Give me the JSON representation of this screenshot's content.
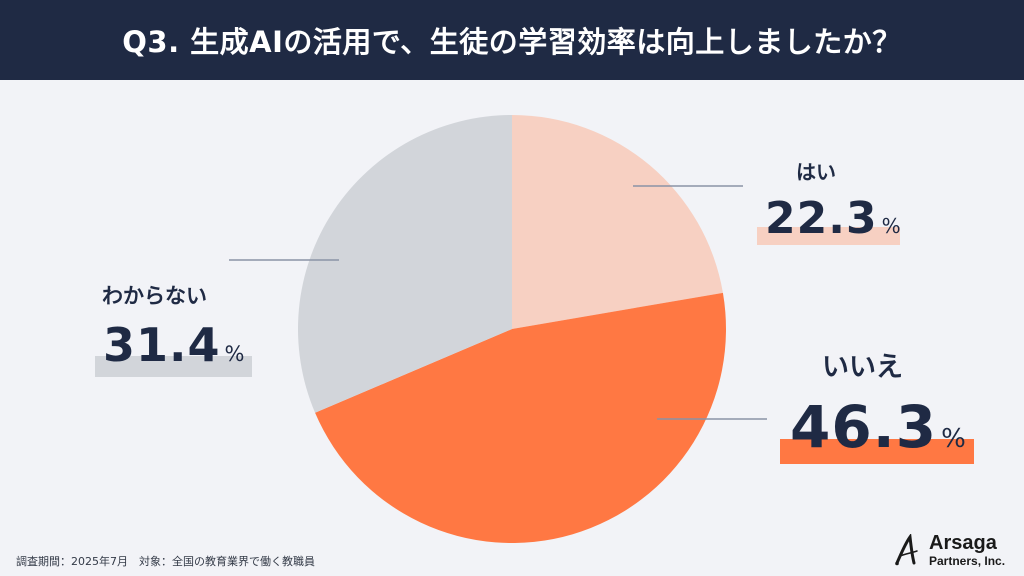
{
  "header": {
    "title": "Q3. 生成AIの活用で、生徒の学習効率は向上しましたか？"
  },
  "colors": {
    "header_bg": "#1f2a44",
    "background": "#f2f3f7",
    "yes": "#f7d0c2",
    "no": "#ff7843",
    "unknown": "#d2d5da",
    "leader": "#8a93a6"
  },
  "labels": {
    "yes": {
      "name": "はい",
      "value": "22.3",
      "unit": "%"
    },
    "no": {
      "name": "いいえ",
      "value": "46.3",
      "unit": "%"
    },
    "unknown": {
      "name": "わからない",
      "value": "31.4",
      "unit": "%"
    }
  },
  "footer": {
    "note": "調査期間：2025年7月　対象：全国の教育業界で働く教職員"
  },
  "logo": {
    "name": "Arsaga",
    "sub": "Partners, Inc."
  },
  "chart_data": {
    "type": "pie",
    "title": "Q3. 生成AIの活用で、生徒の学習効率は向上しましたか？",
    "categories": [
      "はい",
      "いいえ",
      "わからない"
    ],
    "values": [
      22.3,
      46.3,
      31.4
    ],
    "unit": "%",
    "colors": [
      "#f7d0c2",
      "#ff7843",
      "#d2d5da"
    ],
    "start_angle": "12 o'clock, clockwise",
    "legend": "none (direct labels with leader lines)",
    "annotation": "調査期間：2025年7月　対象：全国の教育業界で働く教職員"
  }
}
